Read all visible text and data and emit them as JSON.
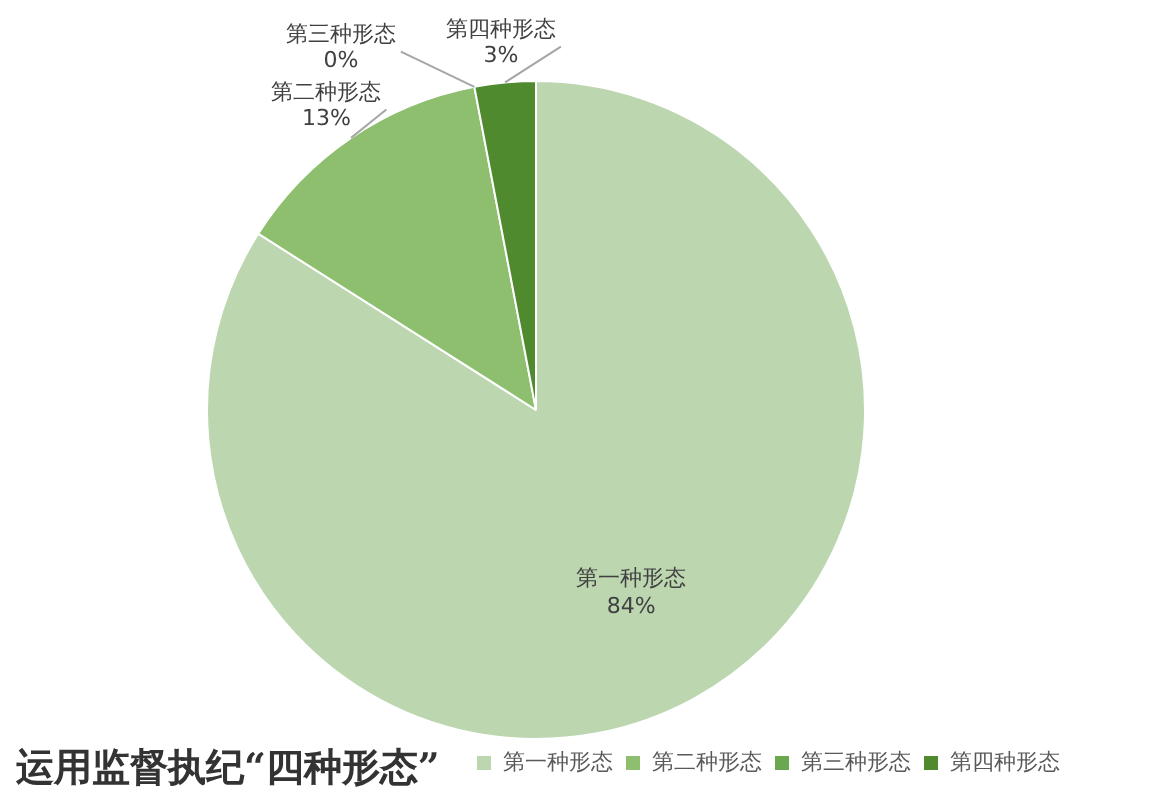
{
  "chart_data": {
    "type": "pie",
    "title": "运用监督执纪“四种形态”",
    "categories": [
      "第一种形态",
      "第二种形态",
      "第三种形态",
      "第四种形态"
    ],
    "values": [
      84,
      13,
      0,
      3
    ],
    "colors": [
      "#bcd6b0",
      "#8dbf6e",
      "#6aa84f",
      "#4f8a2f"
    ],
    "value_labels": [
      "84%",
      "13%",
      "0%",
      "3%"
    ],
    "legend": "bottom right"
  }
}
